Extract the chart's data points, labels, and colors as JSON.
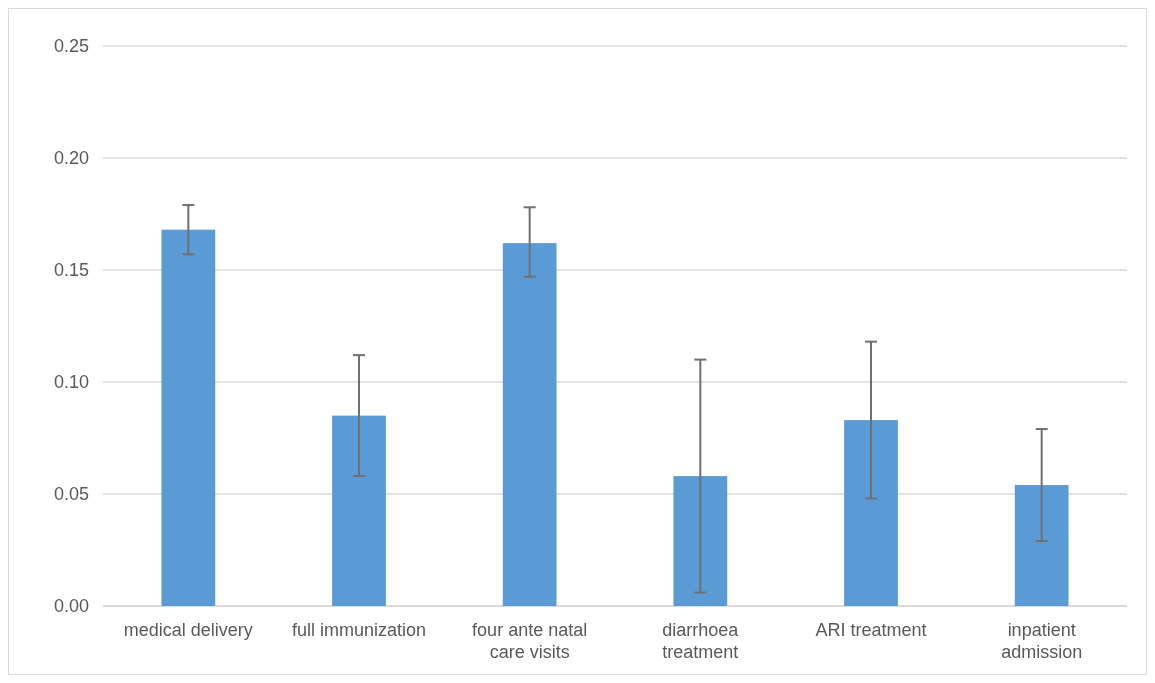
{
  "chart_data": {
    "type": "bar",
    "categories": [
      "medical delivery",
      "full immunization",
      "four ante natal care visits",
      "diarrhoea treatment",
      "ARI treatment",
      "inpatient admission"
    ],
    "values": [
      0.168,
      0.085,
      0.162,
      0.058,
      0.083,
      0.054
    ],
    "errors": [
      [
        0.157,
        0.179
      ],
      [
        0.058,
        0.112
      ],
      [
        0.147,
        0.178
      ],
      [
        0.006,
        0.11
      ],
      [
        0.048,
        0.118
      ],
      [
        0.029,
        0.079
      ]
    ],
    "color": "#5b9bd5",
    "ylim": [
      0,
      0.25
    ],
    "yticks": [
      {
        "value": 0,
        "label": "0.00"
      },
      {
        "value": 0.05,
        "label": "0.05"
      },
      {
        "value": 0.1,
        "label": "0.10"
      },
      {
        "value": 0.15,
        "label": "0.15"
      },
      {
        "value": 0.2,
        "label": "0.20"
      },
      {
        "value": 0.25,
        "label": "0.25"
      }
    ],
    "grid": "y"
  }
}
